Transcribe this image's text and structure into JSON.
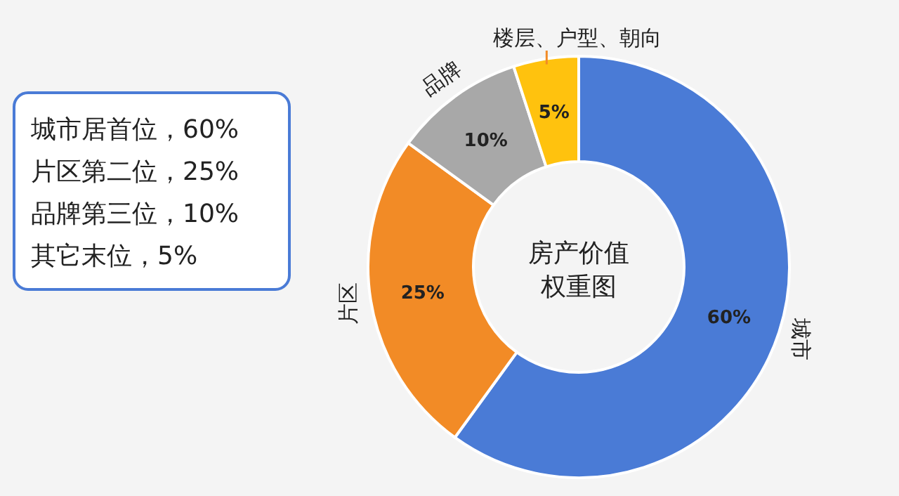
{
  "chart_data": {
    "type": "donut",
    "title": "房产价值权重图",
    "categories": [
      "城市",
      "片区",
      "品牌",
      "楼层、户型、朝向"
    ],
    "values": [
      60,
      25,
      10,
      5
    ],
    "colors": [
      "#4a7bd6",
      "#f28b26",
      "#a8a8a8",
      "#ffc20e"
    ],
    "value_labels": [
      "60%",
      "25%",
      "10%",
      "5%"
    ],
    "annotations": [
      "城市居首位，60%",
      "片区第二位，25%",
      "品牌第三位，10%",
      "其它末位，5%"
    ]
  }
}
